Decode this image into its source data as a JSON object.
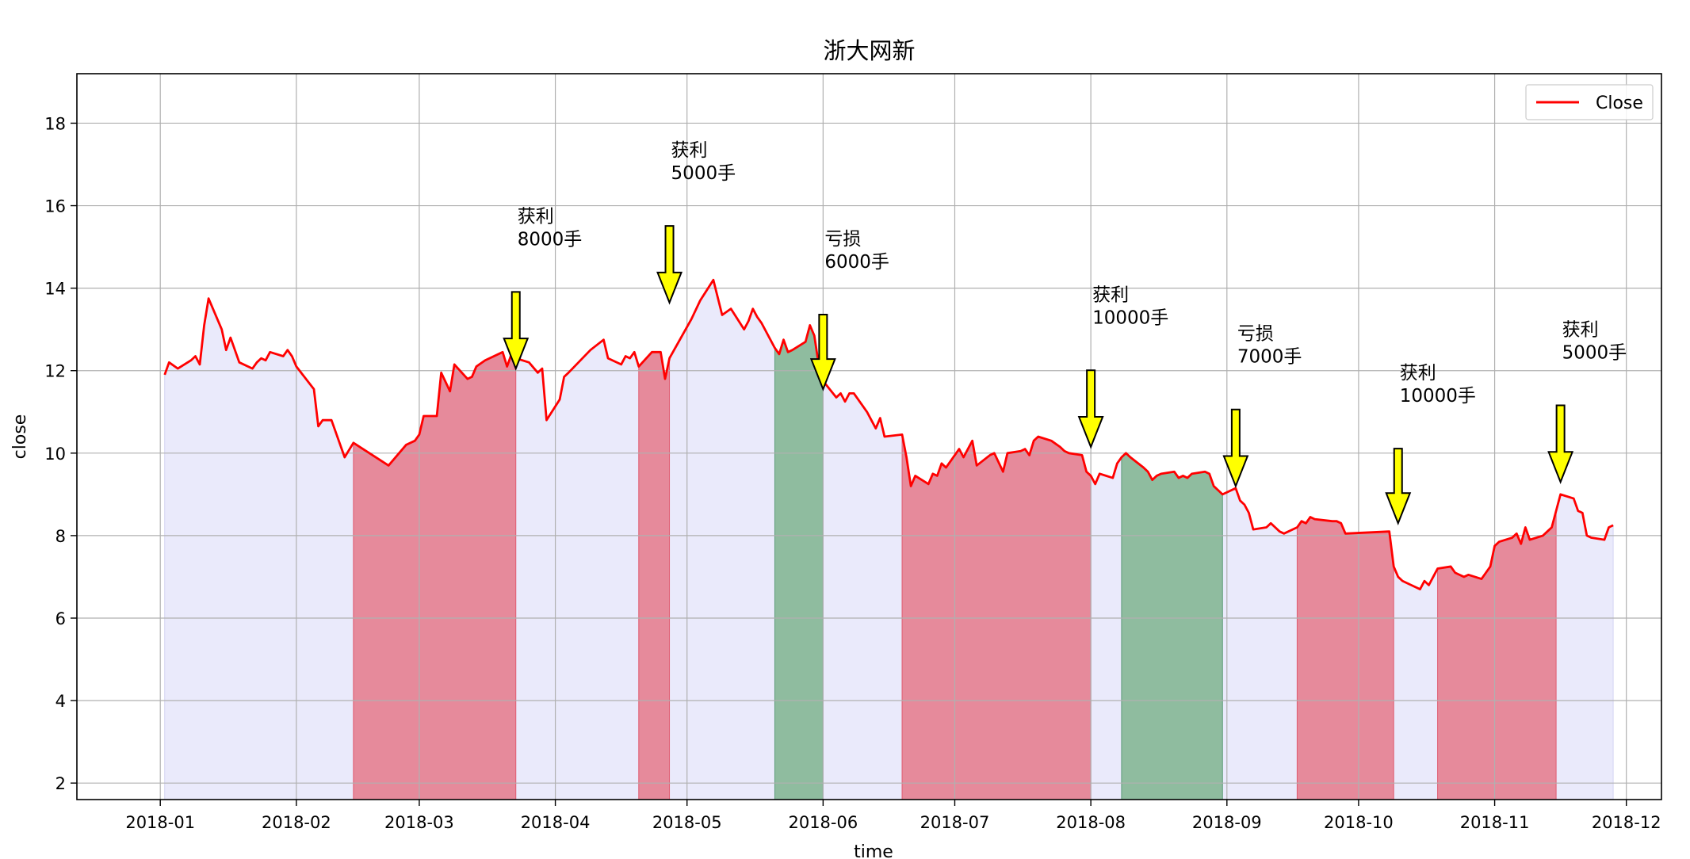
{
  "chart_data": {
    "type": "line",
    "title": "浙大网新",
    "xlabel": "time",
    "ylabel": "close",
    "ylim": [
      1.6,
      19.2
    ],
    "yticks": [
      2,
      4,
      6,
      8,
      10,
      12,
      14,
      16,
      18
    ],
    "xticks": [
      "2018-01",
      "2018-02",
      "2018-03",
      "2018-04",
      "2018-05",
      "2018-06",
      "2018-07",
      "2018-08",
      "2018-09",
      "2018-10",
      "2018-11",
      "2018-12"
    ],
    "grid": true,
    "legend": {
      "position": "top-right",
      "entries": [
        "Close"
      ]
    },
    "colors": {
      "line": "#ff0000",
      "base_fill": "#e6e6fa",
      "profit_fill": "#e68a9b",
      "loss_fill": "#8fbc9f",
      "arrow": "#ffff00"
    },
    "series": [
      {
        "name": "Close",
        "x": [
          "2018-01-02",
          "2018-01-03",
          "2018-01-05",
          "2018-01-08",
          "2018-01-09",
          "2018-01-10",
          "2018-01-11",
          "2018-01-12",
          "2018-01-15",
          "2018-01-16",
          "2018-01-17",
          "2018-01-19",
          "2018-01-22",
          "2018-01-23",
          "2018-01-24",
          "2018-01-25",
          "2018-01-26",
          "2018-01-29",
          "2018-01-30",
          "2018-01-31",
          "2018-02-01",
          "2018-02-05",
          "2018-02-06",
          "2018-02-07",
          "2018-02-08",
          "2018-02-09",
          "2018-02-12",
          "2018-02-14",
          "2018-02-22",
          "2018-02-26",
          "2018-02-28",
          "2018-03-01",
          "2018-03-02",
          "2018-03-05",
          "2018-03-06",
          "2018-03-08",
          "2018-03-09",
          "2018-03-12",
          "2018-03-13",
          "2018-03-14",
          "2018-03-16",
          "2018-03-20",
          "2018-03-21",
          "2018-03-22",
          "2018-03-23",
          "2018-03-26",
          "2018-03-28",
          "2018-03-29",
          "2018-03-30",
          "2018-04-02",
          "2018-04-03",
          "2018-04-04",
          "2018-04-09",
          "2018-04-12",
          "2018-04-13",
          "2018-04-16",
          "2018-04-17",
          "2018-04-18",
          "2018-04-19",
          "2018-04-20",
          "2018-04-23",
          "2018-04-25",
          "2018-04-26",
          "2018-04-27",
          "2018-05-02",
          "2018-05-04",
          "2018-05-07",
          "2018-05-09",
          "2018-05-11",
          "2018-05-14",
          "2018-05-15",
          "2018-05-16",
          "2018-05-17",
          "2018-05-18",
          "2018-05-21",
          "2018-05-22",
          "2018-05-23",
          "2018-05-24",
          "2018-05-25",
          "2018-05-28",
          "2018-05-29",
          "2018-05-30",
          "2018-05-31",
          "2018-06-01",
          "2018-06-04",
          "2018-06-05",
          "2018-06-06",
          "2018-06-07",
          "2018-06-08",
          "2018-06-11",
          "2018-06-12",
          "2018-06-13",
          "2018-06-14",
          "2018-06-15",
          "2018-06-19",
          "2018-06-20",
          "2018-06-21",
          "2018-06-22",
          "2018-06-25",
          "2018-06-26",
          "2018-06-27",
          "2018-06-28",
          "2018-06-29",
          "2018-07-02",
          "2018-07-03",
          "2018-07-05",
          "2018-07-06",
          "2018-07-09",
          "2018-07-10",
          "2018-07-12",
          "2018-07-13",
          "2018-07-16",
          "2018-07-17",
          "2018-07-18",
          "2018-07-19",
          "2018-07-20",
          "2018-07-23",
          "2018-07-25",
          "2018-07-26",
          "2018-07-27",
          "2018-07-30",
          "2018-07-31",
          "2018-08-01",
          "2018-08-02",
          "2018-08-03",
          "2018-08-06",
          "2018-08-07",
          "2018-08-08",
          "2018-08-09",
          "2018-08-10",
          "2018-08-13",
          "2018-08-14",
          "2018-08-15",
          "2018-08-16",
          "2018-08-17",
          "2018-08-20",
          "2018-08-21",
          "2018-08-22",
          "2018-08-23",
          "2018-08-24",
          "2018-08-27",
          "2018-08-28",
          "2018-08-29",
          "2018-08-30",
          "2018-08-31",
          "2018-09-03",
          "2018-09-04",
          "2018-09-05",
          "2018-09-06",
          "2018-09-07",
          "2018-09-10",
          "2018-09-11",
          "2018-09-12",
          "2018-09-13",
          "2018-09-14",
          "2018-09-17",
          "2018-09-18",
          "2018-09-19",
          "2018-09-20",
          "2018-09-21",
          "2018-09-25",
          "2018-09-26",
          "2018-09-27",
          "2018-09-28",
          "2018-10-08",
          "2018-10-09",
          "2018-10-10",
          "2018-10-11",
          "2018-10-12",
          "2018-10-15",
          "2018-10-16",
          "2018-10-17",
          "2018-10-18",
          "2018-10-19",
          "2018-10-22",
          "2018-10-23",
          "2018-10-24",
          "2018-10-25",
          "2018-10-26",
          "2018-10-29",
          "2018-10-30",
          "2018-10-31",
          "2018-11-01",
          "2018-11-02",
          "2018-11-05",
          "2018-11-06",
          "2018-11-07",
          "2018-11-08",
          "2018-11-09",
          "2018-11-12",
          "2018-11-13",
          "2018-11-14",
          "2018-11-15",
          "2018-11-16",
          "2018-11-19",
          "2018-11-20",
          "2018-11-21",
          "2018-11-22",
          "2018-11-23",
          "2018-11-26",
          "2018-11-27",
          "2018-11-28"
        ],
        "values": [
          11.9,
          12.2,
          12.05,
          12.25,
          12.35,
          12.15,
          13.1,
          13.75,
          13.0,
          12.5,
          12.8,
          12.2,
          12.05,
          12.2,
          12.3,
          12.25,
          12.45,
          12.35,
          12.5,
          12.35,
          12.1,
          11.55,
          10.65,
          10.8,
          10.8,
          10.8,
          9.9,
          10.25,
          9.7,
          10.2,
          10.3,
          10.45,
          10.9,
          10.9,
          11.95,
          11.5,
          12.15,
          11.8,
          11.85,
          12.1,
          12.25,
          12.45,
          12.1,
          12.4,
          12.3,
          12.2,
          11.95,
          12.05,
          10.8,
          11.3,
          11.85,
          11.95,
          12.5,
          12.75,
          12.3,
          12.15,
          12.35,
          12.3,
          12.45,
          12.1,
          12.45,
          12.45,
          11.8,
          12.3,
          13.25,
          13.7,
          14.2,
          13.35,
          13.5,
          13.0,
          13.2,
          13.5,
          13.3,
          13.15,
          12.55,
          12.4,
          12.75,
          12.45,
          12.5,
          12.7,
          13.1,
          12.85,
          12.15,
          11.75,
          11.35,
          11.45,
          11.25,
          11.45,
          11.45,
          11.0,
          10.8,
          10.6,
          10.85,
          10.4,
          10.45,
          9.9,
          9.2,
          9.45,
          9.25,
          9.5,
          9.45,
          9.75,
          9.65,
          10.1,
          9.9,
          10.3,
          9.7,
          9.95,
          10.0,
          9.55,
          10.0,
          10.05,
          10.1,
          9.95,
          10.3,
          10.4,
          10.3,
          10.15,
          10.05,
          10.0,
          9.95,
          9.55,
          9.45,
          9.25,
          9.5,
          9.4,
          9.75,
          9.9,
          10.0,
          9.9,
          9.65,
          9.55,
          9.35,
          9.45,
          9.5,
          9.55,
          9.4,
          9.45,
          9.4,
          9.5,
          9.55,
          9.5,
          9.2,
          9.1,
          9.0,
          9.15,
          8.85,
          8.75,
          8.55,
          8.15,
          8.2,
          8.3,
          8.2,
          8.1,
          8.05,
          8.2,
          8.35,
          8.3,
          8.45,
          8.4,
          8.35,
          8.35,
          8.3,
          8.05,
          8.1,
          7.25,
          7.0,
          6.9,
          6.85,
          6.7,
          6.9,
          6.8,
          7.0,
          7.2,
          7.25,
          7.1,
          7.05,
          7.0,
          7.05,
          6.95,
          7.1,
          7.25,
          7.75,
          7.85,
          7.95,
          8.05,
          7.8,
          8.2,
          7.9,
          8.0,
          8.1,
          8.2,
          8.6,
          9.0,
          8.9,
          8.6,
          8.55,
          8.0,
          7.95,
          7.9,
          8.2,
          8.25
        ]
      }
    ],
    "trade_periods": [
      {
        "type": "profit",
        "start": "2018-02-14",
        "end": "2018-03-23"
      },
      {
        "type": "profit",
        "start": "2018-04-20",
        "end": "2018-04-27"
      },
      {
        "type": "loss",
        "start": "2018-05-21",
        "end": "2018-06-01"
      },
      {
        "type": "profit",
        "start": "2018-06-19",
        "end": "2018-08-01"
      },
      {
        "type": "loss",
        "start": "2018-08-08",
        "end": "2018-08-31"
      },
      {
        "type": "profit",
        "start": "2018-09-17",
        "end": "2018-10-09"
      },
      {
        "type": "profit",
        "start": "2018-10-19",
        "end": "2018-11-15"
      }
    ],
    "annotations": [
      {
        "x": "2018-03-23",
        "y": 12.05,
        "text_y": 15.1,
        "text": "获利\n8000手"
      },
      {
        "x": "2018-04-27",
        "y": 13.65,
        "text_y": 16.7,
        "text": "获利\n5000手"
      },
      {
        "x": "2018-06-01",
        "y": 11.55,
        "text_y": 14.55,
        "text": "亏损\n6000手"
      },
      {
        "x": "2018-08-01",
        "y": 10.15,
        "text_y": 13.2,
        "text": "获利\n10000手"
      },
      {
        "x": "2018-09-03",
        "y": 9.2,
        "text_y": 12.25,
        "text": "亏损\n7000手"
      },
      {
        "x": "2018-10-10",
        "y": 8.3,
        "text_y": 11.3,
        "text": "获利\n10000手"
      },
      {
        "x": "2018-11-16",
        "y": 9.3,
        "text_y": 12.35,
        "text": "获利\n5000手"
      }
    ]
  }
}
